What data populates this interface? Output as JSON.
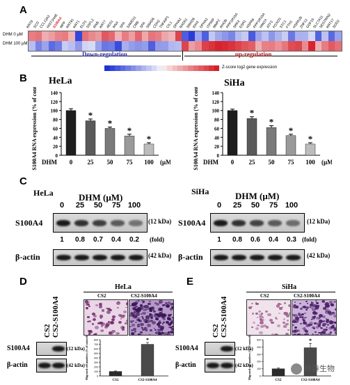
{
  "panels": {
    "A": "A",
    "B": "B",
    "C": "C",
    "D": "D",
    "E": "E"
  },
  "A": {
    "genes": [
      "KRT9",
      "SCD",
      "CCL13A3",
      "HIST1H4E",
      "S100A4",
      "MPP",
      "KRT81",
      "KRT1",
      "ELD1",
      "SSFL2",
      "RNB",
      "KRT7",
      "AES1",
      "RNA",
      "SPA",
      "SAMD11",
      "CMB",
      "SPA",
      "SMAD6",
      "CDH2",
      "TNFAIP1",
      "CIL1",
      "DPHA2",
      "RAD51",
      "SMAD6",
      "IDH3",
      "DPHA2",
      "ITPRIP",
      "MMP2",
      "RHOB",
      "PPP1R15A",
      "SKK3",
      "ESR1",
      "HSPA6",
      "PPP1R15A",
      "HMOX",
      "ATF3",
      "FOXO3",
      "STC1",
      "FTH1",
      "HSPA1B",
      "ZNF12",
      "GDF15",
      "SLC7A11",
      "SESTRIN2",
      "KRT17",
      "SOD2"
    ],
    "highlight_gene_index": 4,
    "row_labels": [
      "DHM 0 μM",
      "DHM 100 μM"
    ],
    "down_label": "Down-regulation",
    "up_label": "up-regulation",
    "scale_label": "Z-score log2 gene expression",
    "colors": {
      "down": "#1a2fd6",
      "up": "#d9202a",
      "neutral": "#f2f2f2"
    }
  },
  "B": {
    "cell_lines": [
      "HeLa",
      "SiHa"
    ],
    "ylabel": "S100A4 RNA expression (% of control)",
    "xlabel_dhm": "DHM",
    "xlabel_unit": "(μM)",
    "chart_data": [
      {
        "type": "bar",
        "title": "HeLa",
        "categories": [
          "0",
          "25",
          "50",
          "75",
          "100"
        ],
        "values": [
          100,
          77,
          60,
          43,
          25
        ],
        "errors": [
          4,
          4,
          3,
          4,
          3
        ],
        "significant": [
          false,
          true,
          true,
          true,
          true
        ],
        "ylim": [
          0,
          140
        ],
        "yticks": [
          0,
          20,
          40,
          60,
          80,
          100,
          120,
          140
        ]
      },
      {
        "type": "bar",
        "title": "SiHa",
        "categories": [
          "0",
          "25",
          "50",
          "75",
          "100"
        ],
        "values": [
          100,
          82,
          62,
          44,
          25
        ],
        "errors": [
          3,
          4,
          4,
          3,
          3
        ],
        "significant": [
          false,
          true,
          true,
          true,
          true
        ],
        "ylim": [
          0,
          140
        ],
        "yticks": [
          0,
          20,
          40,
          60,
          80,
          100,
          120,
          140
        ]
      }
    ]
  },
  "C": {
    "hela": {
      "cell": "HeLa",
      "dhm_label": "DHM (μM)",
      "doses": [
        "0",
        "25",
        "50",
        "75",
        "100"
      ],
      "fold": [
        "1",
        "0.8",
        "0.7",
        "0.4",
        "0.2"
      ],
      "intens": [
        1,
        0.8,
        0.7,
        0.45,
        0.25
      ]
    },
    "siha": {
      "cell": "SiHa",
      "dhm_label": "DHM (μM)",
      "doses": [
        "0",
        "25",
        "50",
        "75",
        "100"
      ],
      "fold": [
        "1",
        "0.8",
        "0.6",
        "0.4",
        "0.3"
      ],
      "intens": [
        1,
        0.8,
        0.65,
        0.45,
        0.3
      ]
    },
    "row1": "S100A4",
    "row2": "β-actin",
    "kda1": "(12 kDa)",
    "kda2": "(42 kDa)",
    "fold_label": "(fold)"
  },
  "D": {
    "cell": "HeLa",
    "cols": [
      "CS2",
      "CS2-S100A4"
    ],
    "row1": "S100A4",
    "row2": "β-actin",
    "kda1": "(12 kDa)",
    "kda2": "(42 kDa)",
    "chart_data": {
      "type": "bar",
      "categories": [
        "CS2",
        "CS2-S100A4"
      ],
      "values": [
        100,
        700
      ],
      "errors": [
        10,
        40
      ],
      "significant": [
        false,
        true
      ],
      "ylim": [
        0,
        800
      ],
      "yticks": [
        0,
        100,
        200,
        300,
        400,
        500,
        600,
        700,
        800
      ],
      "ylabel": "Migrated cell numbers (% of control)"
    }
  },
  "E": {
    "cell": "SiHa",
    "cols": [
      "CS2",
      "CS2-S100A4"
    ],
    "row1": "S100A4",
    "row2": "β-actin",
    "kda1": "(12 kDa)",
    "kda2": "(42 kDa)",
    "chart_data": {
      "type": "bar",
      "categories": [
        "CS2",
        "CS2-S100A4"
      ],
      "values": [
        100,
        390
      ],
      "errors": [
        10,
        60
      ],
      "significant": [
        false,
        true
      ],
      "ylim": [
        0,
        500
      ],
      "yticks": [
        0,
        100,
        200,
        300,
        400,
        500
      ],
      "ylabel": "Migrated cell numbers (% of control)"
    }
  },
  "watermark": "开泰生物"
}
